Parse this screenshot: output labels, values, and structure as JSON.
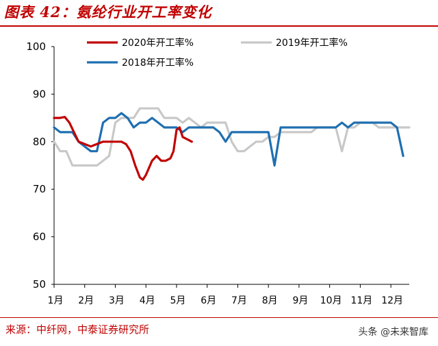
{
  "title": "图表 42：氨纶行业开工率变化",
  "source": "来源：中纤网，中泰证券研究所",
  "watermark": "头条 @未来智库",
  "chart_data": {
    "type": "line",
    "title": "",
    "xlabel": "",
    "ylabel": "",
    "ylim": [
      50,
      100
    ],
    "yticks": [
      50,
      60,
      70,
      80,
      90,
      100
    ],
    "x_range": [
      1,
      12.6
    ],
    "x_ticks": [
      {
        "x": 1,
        "label": "1月"
      },
      {
        "x": 2,
        "label": "2月"
      },
      {
        "x": 3,
        "label": "3月"
      },
      {
        "x": 4,
        "label": "4月"
      },
      {
        "x": 5,
        "label": "5月"
      },
      {
        "x": 6,
        "label": "6月"
      },
      {
        "x": 7,
        "label": "7月"
      },
      {
        "x": 8,
        "label": "8月"
      },
      {
        "x": 9,
        "label": "9月"
      },
      {
        "x": 10,
        "label": "10月"
      },
      {
        "x": 11,
        "label": "11月"
      },
      {
        "x": 12,
        "label": "12月"
      }
    ],
    "grid": false,
    "legend_position": "top",
    "series": [
      {
        "name": "2019年开工率%",
        "color": "#c8c8c8",
        "points": [
          [
            1,
            80
          ],
          [
            1.2,
            78
          ],
          [
            1.4,
            78
          ],
          [
            1.6,
            75
          ],
          [
            1.8,
            75
          ],
          [
            2,
            75
          ],
          [
            2.2,
            75
          ],
          [
            2.4,
            75
          ],
          [
            2.6,
            76
          ],
          [
            2.8,
            77
          ],
          [
            3,
            84
          ],
          [
            3.2,
            85
          ],
          [
            3.4,
            85
          ],
          [
            3.6,
            85
          ],
          [
            3.8,
            87
          ],
          [
            4,
            87
          ],
          [
            4.2,
            87
          ],
          [
            4.4,
            87
          ],
          [
            4.6,
            85
          ],
          [
            4.8,
            85
          ],
          [
            5,
            85
          ],
          [
            5.2,
            84
          ],
          [
            5.4,
            85
          ],
          [
            5.6,
            84
          ],
          [
            5.8,
            83
          ],
          [
            6,
            84
          ],
          [
            6.2,
            84
          ],
          [
            6.4,
            84
          ],
          [
            6.6,
            84
          ],
          [
            6.8,
            80
          ],
          [
            7,
            78
          ],
          [
            7.2,
            78
          ],
          [
            7.4,
            79
          ],
          [
            7.6,
            80
          ],
          [
            7.8,
            80
          ],
          [
            8,
            81
          ],
          [
            8.2,
            81
          ],
          [
            8.4,
            82
          ],
          [
            8.6,
            82
          ],
          [
            8.8,
            82
          ],
          [
            9,
            82
          ],
          [
            9.2,
            82
          ],
          [
            9.4,
            82
          ],
          [
            9.6,
            83
          ],
          [
            9.8,
            83
          ],
          [
            10,
            83
          ],
          [
            10.2,
            83
          ],
          [
            10.4,
            78
          ],
          [
            10.6,
            83
          ],
          [
            10.8,
            83
          ],
          [
            11,
            84
          ],
          [
            11.2,
            84
          ],
          [
            11.4,
            84
          ],
          [
            11.6,
            83
          ],
          [
            11.8,
            83
          ],
          [
            12,
            83
          ],
          [
            12.2,
            83
          ],
          [
            12.4,
            83
          ],
          [
            12.6,
            83
          ]
        ]
      },
      {
        "name": "2018年开工率%",
        "color": "#1f6fb0",
        "points": [
          [
            1,
            83
          ],
          [
            1.2,
            82
          ],
          [
            1.4,
            82
          ],
          [
            1.6,
            82
          ],
          [
            1.8,
            80
          ],
          [
            2,
            79
          ],
          [
            2.2,
            78
          ],
          [
            2.4,
            78
          ],
          [
            2.6,
            84
          ],
          [
            2.8,
            85
          ],
          [
            3,
            85
          ],
          [
            3.2,
            86
          ],
          [
            3.4,
            85
          ],
          [
            3.6,
            83
          ],
          [
            3.8,
            84
          ],
          [
            4,
            84
          ],
          [
            4.2,
            85
          ],
          [
            4.4,
            84
          ],
          [
            4.6,
            83
          ],
          [
            4.8,
            83
          ],
          [
            5,
            83
          ],
          [
            5.2,
            82
          ],
          [
            5.4,
            83
          ],
          [
            5.6,
            83
          ],
          [
            5.8,
            83
          ],
          [
            6,
            83
          ],
          [
            6.2,
            83
          ],
          [
            6.4,
            82
          ],
          [
            6.6,
            80
          ],
          [
            6.8,
            82
          ],
          [
            7,
            82
          ],
          [
            7.2,
            82
          ],
          [
            7.4,
            82
          ],
          [
            7.6,
            82
          ],
          [
            7.8,
            82
          ],
          [
            8,
            82
          ],
          [
            8.2,
            75
          ],
          [
            8.4,
            83
          ],
          [
            8.6,
            83
          ],
          [
            8.8,
            83
          ],
          [
            9,
            83
          ],
          [
            9.2,
            83
          ],
          [
            9.4,
            83
          ],
          [
            9.6,
            83
          ],
          [
            9.8,
            83
          ],
          [
            10,
            83
          ],
          [
            10.2,
            83
          ],
          [
            10.4,
            84
          ],
          [
            10.6,
            83
          ],
          [
            10.8,
            84
          ],
          [
            11,
            84
          ],
          [
            11.2,
            84
          ],
          [
            11.4,
            84
          ],
          [
            11.6,
            84
          ],
          [
            11.8,
            84
          ],
          [
            12,
            84
          ],
          [
            12.2,
            83
          ],
          [
            12.4,
            77
          ]
        ]
      },
      {
        "name": "2020年开工率%",
        "color": "#c00000",
        "points": [
          [
            1,
            85
          ],
          [
            1.2,
            85
          ],
          [
            1.35,
            85.2
          ],
          [
            1.5,
            84
          ],
          [
            1.65,
            82
          ],
          [
            1.8,
            80
          ],
          [
            2,
            79.5
          ],
          [
            2.2,
            79
          ],
          [
            2.4,
            79.5
          ],
          [
            2.6,
            80
          ],
          [
            2.8,
            80
          ],
          [
            3,
            80
          ],
          [
            3.2,
            80
          ],
          [
            3.35,
            79.5
          ],
          [
            3.5,
            78
          ],
          [
            3.65,
            75
          ],
          [
            3.8,
            72.5
          ],
          [
            3.9,
            72
          ],
          [
            4,
            73
          ],
          [
            4.2,
            76
          ],
          [
            4.35,
            77
          ],
          [
            4.5,
            76
          ],
          [
            4.65,
            76
          ],
          [
            4.8,
            76.5
          ],
          [
            4.9,
            78
          ],
          [
            5,
            82.5
          ],
          [
            5.1,
            83
          ],
          [
            5.2,
            81
          ],
          [
            5.35,
            80.5
          ],
          [
            5.5,
            80
          ]
        ]
      }
    ]
  }
}
